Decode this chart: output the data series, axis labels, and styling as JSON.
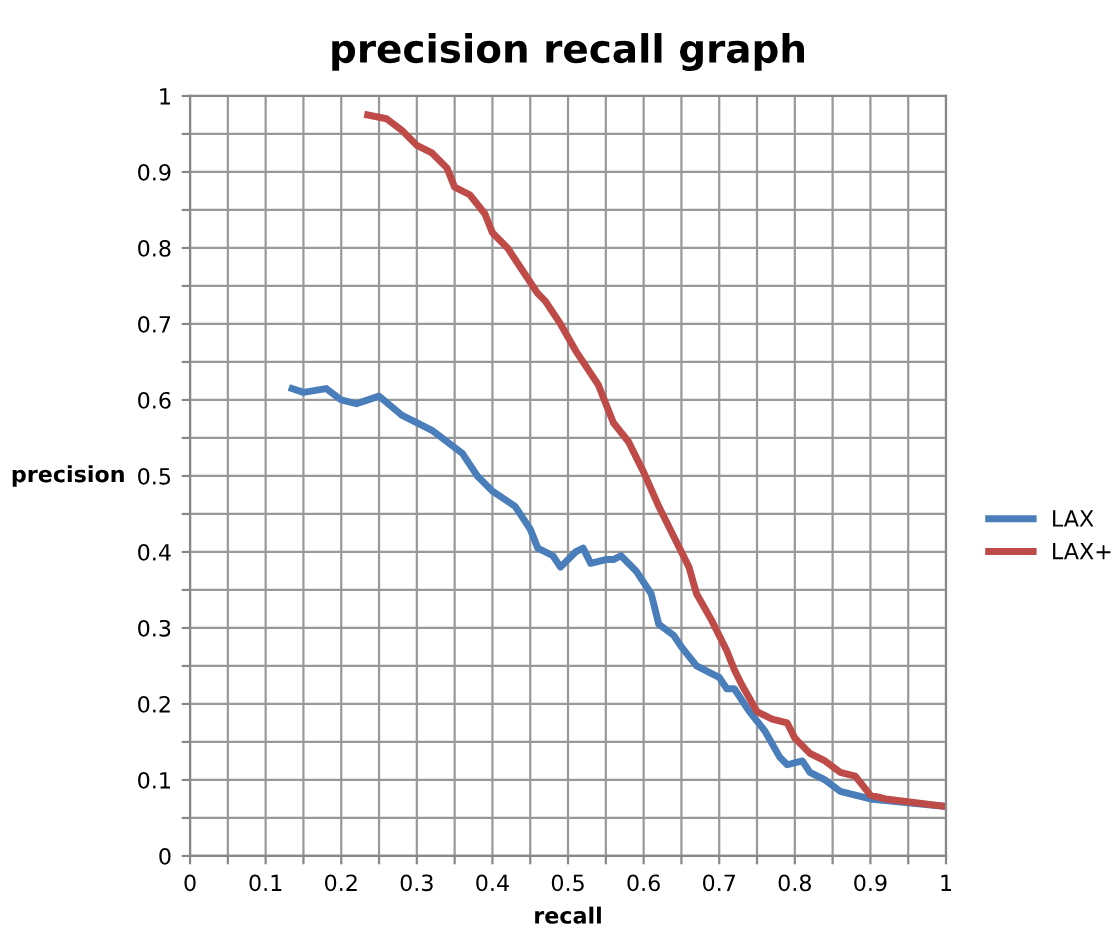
{
  "chart_data": {
    "type": "line",
    "title": "precision recall graph",
    "xlabel": "recall",
    "ylabel": "precision",
    "xlim": [
      0,
      1
    ],
    "ylim": [
      0,
      1
    ],
    "xticks": [
      0,
      {
        "value": 0.05,
        "label": null
      },
      0.1,
      {
        "value": 0.15,
        "label": null
      },
      0.2,
      {
        "value": 0.25,
        "label": null
      },
      0.3,
      {
        "value": 0.35,
        "label": null
      },
      0.4,
      {
        "value": 0.45,
        "label": null
      },
      0.5,
      {
        "value": 0.55,
        "label": null
      },
      0.6,
      {
        "value": 0.65,
        "label": null
      },
      0.7,
      {
        "value": 0.75,
        "label": null
      },
      0.8,
      {
        "value": 0.85,
        "label": null
      },
      0.9,
      {
        "value": 0.95,
        "label": null
      },
      1
    ],
    "yticks": [
      0,
      {
        "value": 0.05,
        "label": null
      },
      0.1,
      {
        "value": 0.15,
        "label": null
      },
      0.2,
      {
        "value": 0.25,
        "label": null
      },
      0.3,
      {
        "value": 0.35,
        "label": null
      },
      0.4,
      {
        "value": 0.45,
        "label": null
      },
      0.5,
      {
        "value": 0.55,
        "label": null
      },
      0.6,
      {
        "value": 0.65,
        "label": null
      },
      0.7,
      {
        "value": 0.75,
        "label": null
      },
      0.8,
      {
        "value": 0.85,
        "label": null
      },
      0.9,
      {
        "value": 0.95,
        "label": null
      },
      1
    ],
    "grid": true,
    "legend": "right",
    "marker": "none",
    "line_style": "solid",
    "series": [
      {
        "name": "LAX",
        "color": "#4a7ebb",
        "x": [
          0.135,
          0.15,
          0.18,
          0.2,
          0.22,
          0.25,
          0.28,
          0.32,
          0.36,
          0.38,
          0.4,
          0.43,
          0.45,
          0.46,
          0.48,
          0.49,
          0.51,
          0.52,
          0.53,
          0.55,
          0.56,
          0.57,
          0.59,
          0.61,
          0.62,
          0.64,
          0.65,
          0.67,
          0.69,
          0.7,
          0.71,
          0.72,
          0.74,
          0.76,
          0.78,
          0.79,
          0.81,
          0.82,
          0.84,
          0.86,
          0.88,
          0.9,
          0.95,
          1.0
        ],
        "values": [
          0.615,
          0.61,
          0.615,
          0.6,
          0.595,
          0.605,
          0.58,
          0.56,
          0.53,
          0.5,
          0.48,
          0.46,
          0.43,
          0.405,
          0.395,
          0.38,
          0.4,
          0.405,
          0.385,
          0.39,
          0.39,
          0.395,
          0.375,
          0.345,
          0.305,
          0.29,
          0.275,
          0.25,
          0.24,
          0.235,
          0.22,
          0.22,
          0.19,
          0.165,
          0.13,
          0.12,
          0.125,
          0.11,
          0.1,
          0.085,
          0.08,
          0.075,
          0.07,
          0.065
        ]
      },
      {
        "name": "LAX+",
        "color": "#be4b48",
        "x": [
          0.235,
          0.26,
          0.28,
          0.3,
          0.32,
          0.34,
          0.35,
          0.37,
          0.39,
          0.4,
          0.42,
          0.44,
          0.46,
          0.47,
          0.49,
          0.51,
          0.53,
          0.54,
          0.55,
          0.56,
          0.58,
          0.6,
          0.62,
          0.64,
          0.66,
          0.67,
          0.69,
          0.71,
          0.72,
          0.73,
          0.75,
          0.77,
          0.79,
          0.8,
          0.82,
          0.84,
          0.86,
          0.88,
          0.9,
          0.92,
          1.0
        ],
        "values": [
          0.975,
          0.97,
          0.955,
          0.935,
          0.925,
          0.905,
          0.88,
          0.87,
          0.845,
          0.82,
          0.8,
          0.77,
          0.74,
          0.73,
          0.7,
          0.665,
          0.635,
          0.62,
          0.595,
          0.57,
          0.545,
          0.505,
          0.46,
          0.42,
          0.38,
          0.345,
          0.31,
          0.27,
          0.245,
          0.225,
          0.19,
          0.18,
          0.175,
          0.155,
          0.135,
          0.125,
          0.11,
          0.105,
          0.08,
          0.075,
          0.065
        ]
      }
    ]
  }
}
